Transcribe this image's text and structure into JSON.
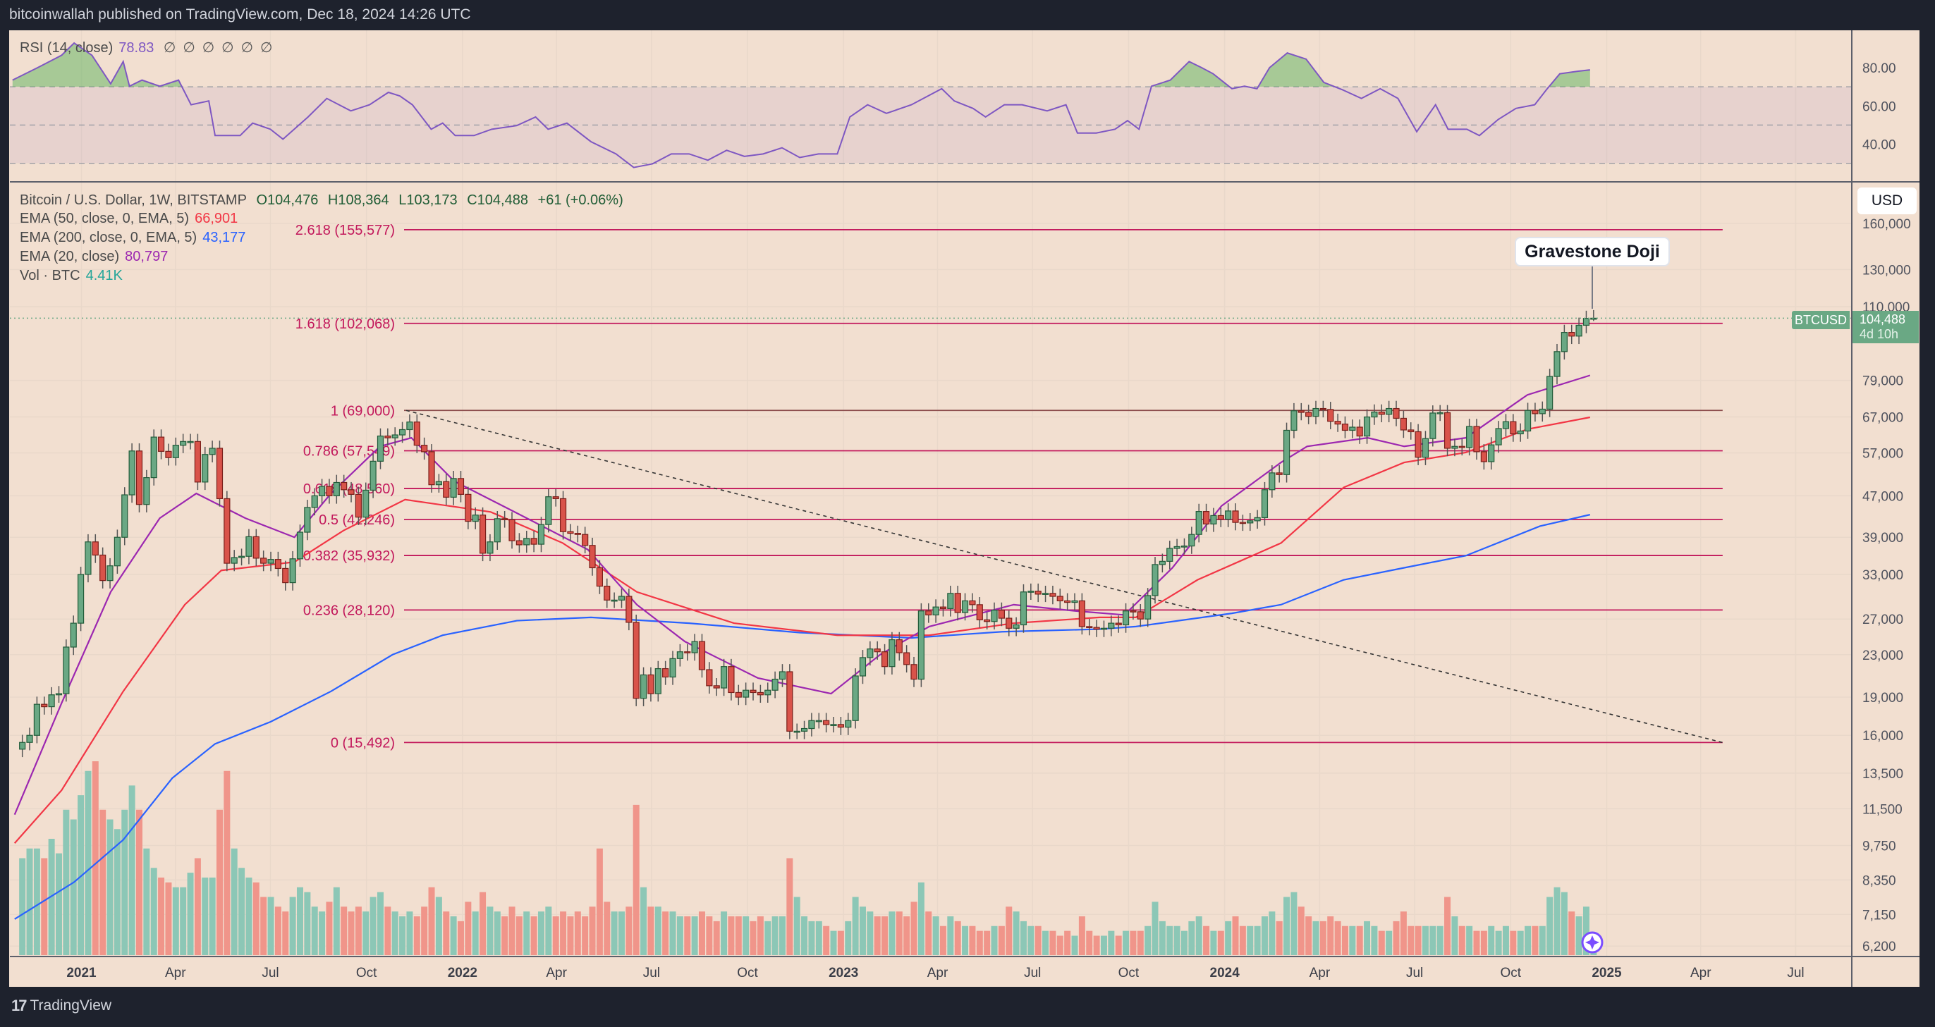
{
  "header": {
    "published": "bitcoinwallah published on TradingView.com, Dec 18, 2024 14:26 UTC"
  },
  "rsi_legend": {
    "name": "RSI (14, close)",
    "value": "78.83",
    "icons": [
      "∅",
      "∅",
      "∅",
      "∅",
      "∅",
      "∅"
    ]
  },
  "legend": {
    "symbol": "Bitcoin / U.S. Dollar, 1W, BITSTAMP",
    "open": "O104,476",
    "high": "H108,364",
    "low": "L103,173",
    "close": "C104,488",
    "change": "+61 (+0.06%)",
    "ema50": {
      "label": "EMA (50, close, 0, EMA, 5)",
      "value": "66,901",
      "color": "#f23645"
    },
    "ema200": {
      "label": "EMA (200, close, 0, EMA, 5)",
      "value": "43,177",
      "color": "#2962ff"
    },
    "ema20": {
      "label": "EMA (20, close)",
      "value": "80,797",
      "color": "#9c27b0"
    },
    "vol": {
      "label": "Vol · BTC",
      "value": "4.41K",
      "color": "#26a69a"
    }
  },
  "price_axis": {
    "currency": "USD",
    "symbol_tag": "BTCUSD",
    "last_price": "104,488",
    "countdown": "4d 10h"
  },
  "annotation": {
    "text": "Gravestone Doji"
  },
  "footer": {
    "logo": "17",
    "brand": "TradingView"
  },
  "colors": {
    "up": "#6aa884",
    "down": "#d9534a",
    "vol_up": "#8cc7b6",
    "vol_down": "#f0958a",
    "fib": "#c2185b",
    "rsi": "#7e57c2",
    "background": "#f2dfd0"
  },
  "chart_data": {
    "type": "candlestick",
    "interval": "1W",
    "scale": "log",
    "grid": true,
    "start_week": "2020-11-02",
    "last_bar": {
      "open": 104476,
      "high": 108364,
      "low": 103173,
      "close": 104488
    },
    "closes": [
      15500,
      16000,
      18400,
      18200,
      19200,
      19300,
      23800,
      26500,
      33000,
      38200,
      36000,
      32100,
      34300,
      39000,
      47200,
      57500,
      45200,
      51000,
      61200,
      57400,
      55800,
      59000,
      60000,
      60000,
      50000,
      56600,
      58200,
      46400,
      34700,
      35600,
      35800,
      39100,
      35500,
      34700,
      35300,
      33900,
      31800,
      35400,
      39900,
      44600,
      47000,
      49000,
      47000,
      49900,
      48300,
      47300,
      42700,
      48200,
      54900,
      61500,
      61000,
      61800,
      63300,
      65500,
      59000,
      57300,
      49400,
      50100,
      46700,
      50800,
      47300,
      41900,
      43100,
      36300,
      38200,
      42400,
      42200,
      38400,
      37700,
      38800,
      37800,
      41300,
      46800,
      46400,
      40000,
      39700,
      39500,
      37600,
      34000,
      31300,
      29400,
      29400,
      29900,
      26600,
      18900,
      21000,
      19300,
      21600,
      20800,
      22600,
      23300,
      23200,
      24400,
      21500,
      20000,
      19800,
      21800,
      19400,
      19000,
      19600,
      19400,
      19200,
      19600,
      20600,
      21300,
      16300,
      16300,
      16500,
      17100,
      17100,
      16800,
      16800,
      16600,
      17100,
      20900,
      22700,
      23600,
      23300,
      21800,
      24600,
      23200,
      22000,
      20600,
      28000,
      27500,
      28500,
      28300,
      30300,
      27800,
      29300,
      28800,
      26900,
      26700,
      28100,
      27100,
      25900,
      26300,
      30500,
      30600,
      30200,
      30300,
      29900,
      29300,
      29100,
      29300,
      26100,
      26000,
      25800,
      25900,
      26500,
      26300,
      28000,
      27900,
      27000,
      30000,
      34500,
      35000,
      37100,
      37400,
      37500,
      39500,
      43800,
      41400,
      43000,
      42300,
      43900,
      41700,
      41600,
      42000,
      42600,
      48300,
      52100,
      51700,
      63100,
      68900,
      68400,
      67200,
      69600,
      69300,
      65700,
      64900,
      63100,
      64000,
      61500,
      67000,
      68500,
      67800,
      69600,
      66600,
      63200,
      62700,
      55900,
      60800,
      68200,
      68300,
      58200,
      58700,
      58400,
      64200,
      57300,
      54800,
      59100,
      63600,
      65600,
      62100,
      62900,
      69000,
      68000,
      69400,
      80400,
      89900,
      98000,
      96400,
      101200,
      104400,
      104488
    ],
    "volume_btc_thousands": [
      20,
      22,
      22,
      20,
      24,
      21,
      30,
      28,
      33,
      38,
      40,
      30,
      28,
      26,
      30,
      35,
      30,
      22,
      18,
      16,
      15,
      14,
      14,
      17,
      20,
      16,
      16,
      30,
      38,
      22,
      18,
      16,
      15,
      12,
      12,
      10,
      9,
      12,
      14,
      13,
      10,
      9,
      11,
      14,
      10,
      9,
      10,
      9,
      12,
      13,
      10,
      9,
      8,
      9,
      8,
      10,
      14,
      12,
      9,
      8,
      7,
      11,
      9,
      13,
      10,
      9,
      8,
      10,
      8,
      9,
      8,
      9,
      10,
      8,
      9,
      8,
      9,
      8,
      10,
      22,
      11,
      9,
      9,
      10,
      31,
      14,
      10,
      10,
      9,
      9,
      8,
      8,
      8,
      9,
      8,
      7,
      9,
      8,
      8,
      8,
      7,
      8,
      7,
      8,
      8,
      20,
      12,
      8,
      7,
      7,
      6,
      5,
      5,
      7,
      12,
      10,
      9,
      8,
      8,
      9,
      9,
      8,
      11,
      15,
      9,
      8,
      6,
      8,
      7,
      6,
      6,
      5,
      5,
      6,
      6,
      10,
      9,
      7,
      6,
      6,
      5,
      5,
      4,
      5,
      4,
      8,
      5,
      4,
      4,
      5,
      4,
      5,
      5,
      5,
      6,
      11,
      7,
      6,
      6,
      5,
      7,
      8,
      6,
      5,
      5,
      7,
      8,
      6,
      6,
      6,
      8,
      9,
      7,
      12,
      13,
      10,
      8,
      7,
      7,
      8,
      7,
      6,
      6,
      6,
      7,
      6,
      5,
      5,
      7,
      9,
      6,
      6,
      6,
      6,
      6,
      12,
      8,
      6,
      6,
      5,
      5,
      6,
      5,
      6,
      5,
      5,
      6,
      6,
      6,
      12,
      14,
      13,
      9,
      8,
      10,
      4.41
    ],
    "ema20": [
      [
        "2020-10-29",
        11200
      ],
      [
        "2020-12-13",
        18500
      ],
      [
        "2021-01-29",
        30500
      ],
      [
        "2021-03-17",
        42500
      ],
      [
        "2021-04-21",
        47500
      ],
      [
        "2021-06-07",
        42500
      ],
      [
        "2021-07-24",
        39000
      ],
      [
        "2021-08-28",
        47500
      ],
      [
        "2021-10-14",
        58700
      ],
      [
        "2021-11-13",
        61000
      ],
      [
        "2021-12-24",
        50200
      ],
      [
        "2022-02-20",
        43700
      ],
      [
        "2022-05-01",
        36900
      ],
      [
        "2022-06-17",
        28800
      ],
      [
        "2022-08-02",
        24400
      ],
      [
        "2022-10-11",
        20700
      ],
      [
        "2022-12-20",
        19300
      ],
      [
        "2023-02-05",
        23000
      ],
      [
        "2023-03-24",
        26100
      ],
      [
        "2023-06-13",
        28800
      ],
      [
        "2023-08-11",
        28000
      ],
      [
        "2023-09-27",
        27500
      ],
      [
        "2023-11-12",
        34000
      ],
      [
        "2023-12-29",
        44900
      ],
      [
        "2024-02-24",
        54600
      ],
      [
        "2024-03-20",
        58700
      ],
      [
        "2024-05-17",
        61000
      ],
      [
        "2024-06-21",
        58700
      ],
      [
        "2024-08-19",
        61000
      ],
      [
        "2024-10-17",
        74000
      ],
      [
        "2024-12-16",
        80797
      ]
    ],
    "ema50": [
      [
        "2020-10-29",
        9850
      ],
      [
        "2020-12-13",
        12500
      ],
      [
        "2021-02-10",
        19500
      ],
      [
        "2021-04-10",
        28800
      ],
      [
        "2021-05-15",
        33600
      ],
      [
        "2021-07-24",
        34900
      ],
      [
        "2021-09-09",
        40200
      ],
      [
        "2021-11-07",
        46200
      ],
      [
        "2022-01-28",
        43700
      ],
      [
        "2022-04-07",
        38000
      ],
      [
        "2022-06-17",
        30500
      ],
      [
        "2022-09-18",
        26500
      ],
      [
        "2022-12-26",
        25100
      ],
      [
        "2023-03-24",
        25100
      ],
      [
        "2023-06-13",
        26500
      ],
      [
        "2023-09-03",
        27200
      ],
      [
        "2023-10-08",
        27200
      ],
      [
        "2023-12-06",
        32200
      ],
      [
        "2024-02-24",
        38000
      ],
      [
        "2024-04-24",
        48800
      ],
      [
        "2024-06-21",
        54600
      ],
      [
        "2024-08-19",
        57100
      ],
      [
        "2024-10-17",
        63400
      ],
      [
        "2024-12-16",
        66901
      ]
    ],
    "ema200": [
      [
        "2020-10-29",
        7000
      ],
      [
        "2020-12-25",
        8270
      ],
      [
        "2021-02-10",
        10000
      ],
      [
        "2021-03-29",
        13200
      ],
      [
        "2021-05-09",
        15400
      ],
      [
        "2021-07-01",
        17000
      ],
      [
        "2021-08-28",
        19500
      ],
      [
        "2021-10-26",
        23000
      ],
      [
        "2021-12-13",
        25100
      ],
      [
        "2022-02-22",
        26800
      ],
      [
        "2022-05-04",
        27200
      ],
      [
        "2022-08-06",
        26500
      ],
      [
        "2022-11-20",
        25400
      ],
      [
        "2023-03-07",
        24800
      ],
      [
        "2023-06-02",
        25500
      ],
      [
        "2023-09-03",
        25800
      ],
      [
        "2023-10-08",
        26100
      ],
      [
        "2024-01-08",
        27700
      ],
      [
        "2024-02-24",
        28800
      ],
      [
        "2024-04-24",
        32200
      ],
      [
        "2024-06-21",
        34000
      ],
      [
        "2024-08-19",
        35900
      ],
      [
        "2024-10-29",
        41000
      ],
      [
        "2024-12-16",
        43177
      ]
    ],
    "rsi": [
      [
        "2020-10-27",
        73.5
      ],
      [
        "2020-11-20",
        80
      ],
      [
        "2020-12-13",
        86.5
      ],
      [
        "2020-12-25",
        92.9
      ],
      [
        "2021-01-11",
        86.5
      ],
      [
        "2021-01-29",
        71.6
      ],
      [
        "2021-02-10",
        83.2
      ],
      [
        "2021-02-16",
        70.3
      ],
      [
        "2021-02-28",
        73.5
      ],
      [
        "2021-03-17",
        70.3
      ],
      [
        "2021-04-04",
        73.5
      ],
      [
        "2021-04-16",
        60.6
      ],
      [
        "2021-05-03",
        62.6
      ],
      [
        "2021-05-09",
        44.5
      ],
      [
        "2021-06-02",
        44.5
      ],
      [
        "2021-06-14",
        51
      ],
      [
        "2021-07-01",
        47.8
      ],
      [
        "2021-07-13",
        42.6
      ],
      [
        "2021-08-06",
        54.2
      ],
      [
        "2021-08-24",
        63.9
      ],
      [
        "2021-09-16",
        57.4
      ],
      [
        "2021-10-04",
        60.6
      ],
      [
        "2021-10-22",
        67.1
      ],
      [
        "2021-11-02",
        65.2
      ],
      [
        "2021-11-14",
        60.6
      ],
      [
        "2021-12-02",
        47.8
      ],
      [
        "2021-12-13",
        51
      ],
      [
        "2021-12-25",
        44.5
      ],
      [
        "2022-01-12",
        44.5
      ],
      [
        "2022-01-29",
        47.8
      ],
      [
        "2022-02-22",
        49.7
      ],
      [
        "2022-03-12",
        54.2
      ],
      [
        "2022-03-24",
        47.8
      ],
      [
        "2022-04-11",
        51
      ],
      [
        "2022-05-04",
        41.3
      ],
      [
        "2022-05-28",
        34.9
      ],
      [
        "2022-06-14",
        27.8
      ],
      [
        "2022-07-02",
        29.7
      ],
      [
        "2022-07-20",
        34.9
      ],
      [
        "2022-08-06",
        34.9
      ],
      [
        "2022-08-24",
        31.6
      ],
      [
        "2022-09-11",
        36.8
      ],
      [
        "2022-09-28",
        33.6
      ],
      [
        "2022-10-16",
        34.9
      ],
      [
        "2022-11-03",
        38.1
      ],
      [
        "2022-11-20",
        33
      ],
      [
        "2022-12-08",
        34.9
      ],
      [
        "2022-12-26",
        34.9
      ],
      [
        "2023-01-07",
        54.2
      ],
      [
        "2023-01-24",
        60.6
      ],
      [
        "2023-02-11",
        56.1
      ],
      [
        "2023-03-07",
        60.6
      ],
      [
        "2023-04-05",
        69
      ],
      [
        "2023-04-17",
        62.6
      ],
      [
        "2023-05-05",
        58.7
      ],
      [
        "2023-05-17",
        54.2
      ],
      [
        "2023-06-04",
        60.6
      ],
      [
        "2023-06-21",
        60.6
      ],
      [
        "2023-07-15",
        57.4
      ],
      [
        "2023-08-02",
        60.6
      ],
      [
        "2023-08-13",
        45.8
      ],
      [
        "2023-08-31",
        45.8
      ],
      [
        "2023-09-18",
        47.8
      ],
      [
        "2023-09-30",
        52.3
      ],
      [
        "2023-10-11",
        47.8
      ],
      [
        "2023-10-23",
        70.3
      ],
      [
        "2023-11-10",
        73.5
      ],
      [
        "2023-11-28",
        83.2
      ],
      [
        "2023-12-10",
        80
      ],
      [
        "2023-12-21",
        76.8
      ],
      [
        "2024-01-08",
        69
      ],
      [
        "2024-01-20",
        70.3
      ],
      [
        "2024-02-01",
        69
      ],
      [
        "2024-02-13",
        80
      ],
      [
        "2024-03-01",
        87.7
      ],
      [
        "2024-03-19",
        84.5
      ],
      [
        "2024-04-05",
        72.3
      ],
      [
        "2024-04-23",
        68.4
      ],
      [
        "2024-05-11",
        63.9
      ],
      [
        "2024-05-29",
        69
      ],
      [
        "2024-06-15",
        63.9
      ],
      [
        "2024-07-03",
        46.5
      ],
      [
        "2024-07-21",
        60.6
      ],
      [
        "2024-08-02",
        47.8
      ],
      [
        "2024-08-20",
        47.8
      ],
      [
        "2024-09-01",
        44.5
      ],
      [
        "2024-09-19",
        52.9
      ],
      [
        "2024-10-06",
        58.7
      ],
      [
        "2024-10-24",
        60.6
      ],
      [
        "2024-11-05",
        69
      ],
      [
        "2024-11-17",
        76.8
      ],
      [
        "2024-12-04",
        78.1
      ],
      [
        "2024-12-16",
        78.83
      ]
    ],
    "rsi_levels": {
      "upper": 70,
      "middle": 50,
      "lower": 30
    },
    "rsi_axis": {
      "ticks": [
        "80.00",
        "60.00",
        "40.00"
      ]
    },
    "price_axis_ticks": [
      "160,000",
      "130,000",
      "110,000",
      "79,000",
      "67,000",
      "57,000",
      "47,000",
      "39,000",
      "33,000",
      "27,000",
      "23,000",
      "19,000",
      "16,000",
      "13,500",
      "11,500",
      "9,750",
      "8,350",
      "7,150",
      "6,200"
    ],
    "time_axis_ticks": [
      {
        "label": "2021",
        "date": "2021-01-01",
        "year": true
      },
      {
        "label": "Apr",
        "date": "2021-04-01"
      },
      {
        "label": "Jul",
        "date": "2021-07-01"
      },
      {
        "label": "Oct",
        "date": "2021-10-01"
      },
      {
        "label": "2022",
        "date": "2022-01-01",
        "year": true
      },
      {
        "label": "Apr",
        "date": "2022-04-01"
      },
      {
        "label": "Jul",
        "date": "2022-07-01"
      },
      {
        "label": "Oct",
        "date": "2022-10-01"
      },
      {
        "label": "2023",
        "date": "2023-01-01",
        "year": true
      },
      {
        "label": "Apr",
        "date": "2023-04-01"
      },
      {
        "label": "Jul",
        "date": "2023-07-01"
      },
      {
        "label": "Oct",
        "date": "2023-10-01"
      },
      {
        "label": "2024",
        "date": "2024-01-01",
        "year": true
      },
      {
        "label": "Apr",
        "date": "2024-04-01"
      },
      {
        "label": "Jul",
        "date": "2024-07-01"
      },
      {
        "label": "Oct",
        "date": "2024-10-01"
      },
      {
        "label": "2025",
        "date": "2025-01-01",
        "year": true
      },
      {
        "label": "Apr",
        "date": "2025-04-01"
      },
      {
        "label": "Jul",
        "date": "2025-07-01"
      }
    ],
    "fib_levels": [
      {
        "label": "2.618 (155,577)",
        "price": 155577
      },
      {
        "label": "1.618 (102,068)",
        "price": 102068
      },
      {
        "label": "1 (69,000)",
        "price": 69000
      },
      {
        "label": "0.786 (57,549)",
        "price": 57549
      },
      {
        "label": "0.618 (48,560)",
        "price": 48560
      },
      {
        "label": "0.5 (42,246)",
        "price": 42246
      },
      {
        "label": "0.382 (35,932)",
        "price": 35932
      },
      {
        "label": "0.236 (28,120)",
        "price": 28120
      },
      {
        "label": "0 (15,492)",
        "price": 15492
      }
    ],
    "trendline": [
      [
        "2021-11-08",
        69000
      ],
      [
        "2025-04-22",
        15492
      ]
    ],
    "fib_end_date": "2025-04-22"
  }
}
